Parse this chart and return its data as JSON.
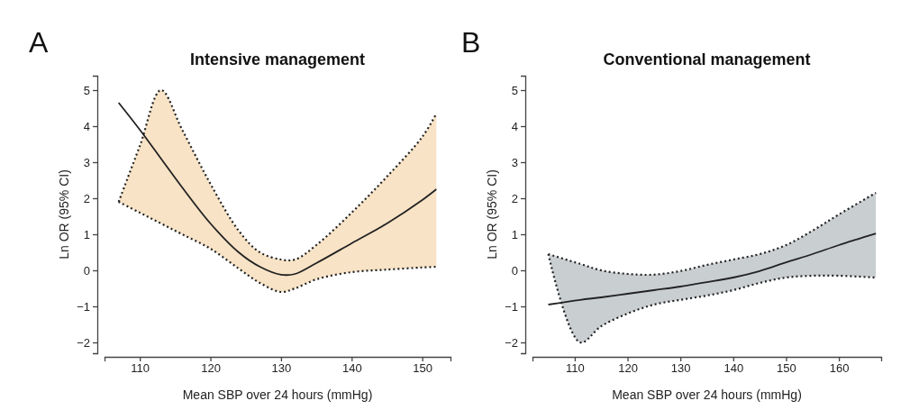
{
  "chart_data": [
    {
      "type": "line",
      "title": "Intensive management",
      "xlabel": "Mean SBP over 24 hours (mmHg)",
      "ylabel": "Ln OR (95% CI)",
      "annotations": [
        "A"
      ],
      "x": [
        107,
        110,
        113,
        116,
        120,
        124,
        127,
        130,
        132,
        135,
        140,
        145,
        150,
        152
      ],
      "series": [
        {
          "color": "#222222",
          "line_style": "solid",
          "values": [
            4.65,
            3.9,
            3.1,
            2.3,
            1.3,
            0.5,
            0.1,
            -0.12,
            -0.1,
            0.2,
            0.75,
            1.3,
            1.95,
            2.25
          ],
          "upper": [
            1.9,
            3.45,
            5.0,
            3.9,
            2.4,
            1.1,
            0.5,
            0.3,
            0.3,
            0.7,
            1.6,
            2.6,
            3.7,
            4.35
          ],
          "lower": [
            1.9,
            1.6,
            1.3,
            1.0,
            0.6,
            0.05,
            -0.35,
            -0.6,
            -0.5,
            -0.25,
            -0.05,
            0.02,
            0.08,
            0.1
          ]
        },
        {
          "color": "#222222",
          "line_style": "dotted",
          "values": [
            1.9,
            3.45,
            5.0,
            3.9,
            2.4,
            1.1,
            0.5,
            0.3,
            0.3,
            0.7,
            1.6,
            2.6,
            3.7,
            4.35
          ]
        },
        {
          "color": "#222222",
          "line_style": "dotted",
          "values": [
            1.9,
            1.6,
            1.3,
            1.0,
            0.6,
            0.05,
            -0.35,
            -0.6,
            -0.5,
            -0.25,
            -0.05,
            0.02,
            0.08,
            0.1
          ]
        }
      ],
      "xlim": [
        105,
        154
      ],
      "xticks": [
        110,
        120,
        130,
        140,
        150
      ],
      "ylim": [
        -2.3,
        5.4
      ],
      "yticks": [
        -2,
        -1,
        0,
        1,
        2,
        3,
        4,
        5
      ],
      "grid": false,
      "marker": "none"
    },
    {
      "type": "line",
      "title": "Conventional management",
      "xlabel": "Mean SBP over 24 hours (mmHg)",
      "ylabel": "Ln OR (95% CI)",
      "annotations": [
        "B"
      ],
      "x": [
        105,
        111,
        115,
        120,
        125,
        130,
        135,
        140,
        145,
        150,
        155,
        160,
        167
      ],
      "series": [
        {
          "color": "#222222",
          "line_style": "solid",
          "values": [
            -0.95,
            -0.82,
            -0.75,
            -0.65,
            -0.55,
            -0.45,
            -0.33,
            -0.2,
            -0.02,
            0.22,
            0.45,
            0.7,
            1.02
          ],
          "upper": [
            0.45,
            0.18,
            0.0,
            -0.1,
            -0.12,
            -0.02,
            0.15,
            0.3,
            0.45,
            0.7,
            1.1,
            1.55,
            2.15
          ],
          "lower": [
            0.45,
            -2.0,
            -1.55,
            -1.2,
            -0.95,
            -0.82,
            -0.7,
            -0.55,
            -0.35,
            -0.2,
            -0.15,
            -0.15,
            -0.2
          ]
        },
        {
          "color": "#222222",
          "line_style": "dotted",
          "values": [
            0.45,
            0.18,
            0.0,
            -0.1,
            -0.12,
            -0.02,
            0.15,
            0.3,
            0.45,
            0.7,
            1.1,
            1.55,
            2.15
          ]
        },
        {
          "color": "#222222",
          "line_style": "dotted",
          "values": [
            0.45,
            -2.0,
            -1.55,
            -1.2,
            -0.95,
            -0.82,
            -0.7,
            -0.55,
            -0.35,
            -0.2,
            -0.15,
            -0.15,
            -0.2
          ]
        }
      ],
      "xlim": [
        102,
        168
      ],
      "xticks": [
        110,
        120,
        130,
        140,
        150,
        160
      ],
      "ylim": [
        -2.3,
        5.4
      ],
      "yticks": [
        -2,
        -1,
        0,
        1,
        2,
        3,
        4,
        5
      ],
      "grid": false,
      "marker": "none"
    }
  ]
}
